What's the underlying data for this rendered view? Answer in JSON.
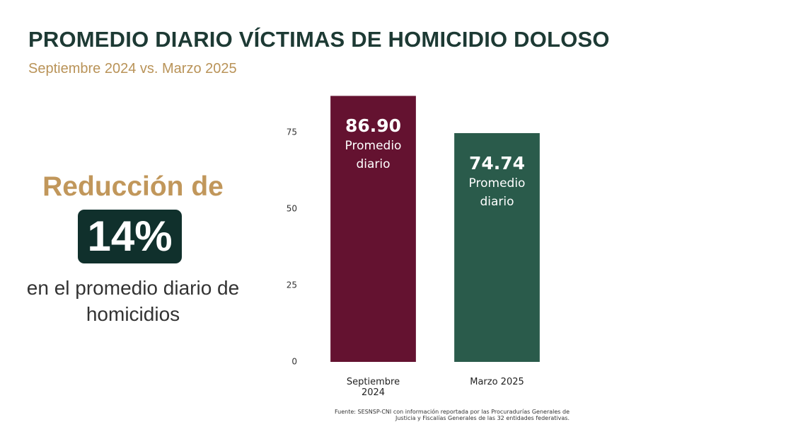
{
  "chart_data": {
    "type": "bar",
    "title": "PROMEDIO DIARIO VÍCTIMAS DE HOMICIDIO DOLOSO",
    "subtitle": "Septiembre 2024 vs. Marzo 2025",
    "categories": [
      "Septiembre 2024",
      "Marzo 2025"
    ],
    "series": [
      {
        "name": "Promedio diario",
        "colors": [
          "#641230",
          "#2a5b4b"
        ],
        "values": [
          86.9,
          74.74
        ],
        "value_labels": [
          "86.90",
          "74.74"
        ]
      }
    ],
    "bar_note": "Promedio diario",
    "ylim": [
      0,
      90
    ],
    "yticks": [
      0,
      25,
      50,
      75
    ],
    "grid": false,
    "annotations": {
      "lead": "Reducción de",
      "highlight": "14%",
      "description": "en el promedio diario de homicidios"
    },
    "source": "Fuente: SESNSP-CNI con información reportada por las Procuradurías Generales de Justicia y Fiscalías Generales de las 32 entidades federativas."
  }
}
